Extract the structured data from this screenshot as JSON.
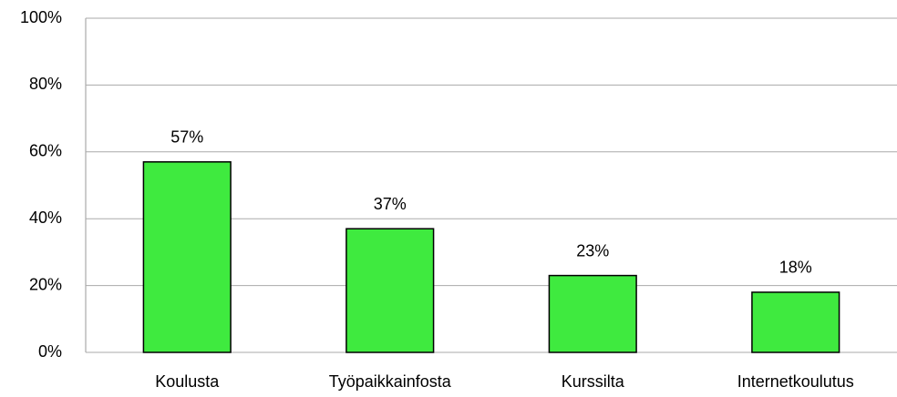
{
  "chart_data": {
    "type": "bar",
    "categories": [
      "Koulusta",
      "Työpaikkainfosta",
      "Kurssilta",
      "Internetkoulutus"
    ],
    "values": [
      57,
      37,
      23,
      18
    ],
    "value_labels": [
      "57%",
      "37%",
      "23%",
      "18%"
    ],
    "color": "#3fea3f",
    "ylim": [
      0,
      100
    ],
    "yticks": [
      {
        "value": 0,
        "label": "0%"
      },
      {
        "value": 20,
        "label": "20%"
      },
      {
        "value": 40,
        "label": "40%"
      },
      {
        "value": 60,
        "label": "60%"
      },
      {
        "value": 80,
        "label": "80%"
      },
      {
        "value": 100,
        "label": "100%"
      }
    ],
    "grid": true
  }
}
